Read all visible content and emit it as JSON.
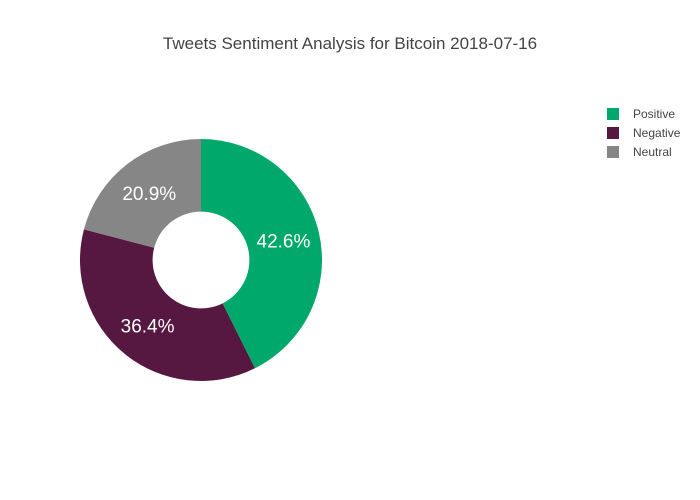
{
  "chart_data": {
    "type": "pie",
    "title": "Tweets Sentiment Analysis for Bitcoin 2018-07-16",
    "hole": 0.4,
    "labels": [
      "Positive",
      "Negative",
      "Neutral"
    ],
    "values": [
      42.6,
      36.4,
      20.9
    ],
    "slice_labels": [
      "42.6%",
      "36.4%",
      "20.9%"
    ],
    "colors": [
      "#00a86b",
      "#561840",
      "#868686"
    ],
    "legend_position": "top-right",
    "legend": [
      "Positive",
      "Negative",
      "Neutral"
    ]
  }
}
